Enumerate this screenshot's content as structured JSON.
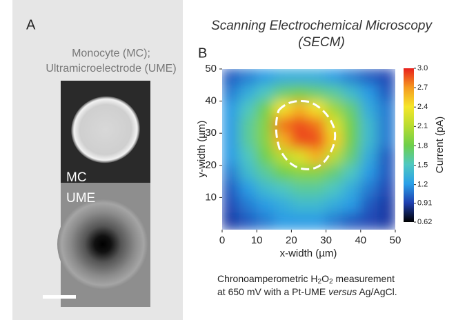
{
  "panel_a": {
    "label": "A",
    "title_lines": [
      "Monocyte (MC);",
      "Ultramicroelectrode (UME)"
    ],
    "image_labels": [
      "MC",
      "UME"
    ]
  },
  "chart_data": {
    "type": "heatmap",
    "panel_label": "B",
    "title_lines": [
      "Scanning Electrochemical Microscopy",
      "(SECM)"
    ],
    "x_label": "x-width (µm)",
    "y_label": "y-width (µm)",
    "colorbar_label": "Current (pA)",
    "xlim": [
      0,
      50
    ],
    "ylim": [
      0,
      50
    ],
    "xticks": [
      0,
      10,
      20,
      30,
      40,
      50
    ],
    "yticks": [
      10,
      20,
      30,
      40,
      50
    ],
    "clim": [
      0.62,
      3.0
    ],
    "cticks": [
      {
        "value": 3.0,
        "label": "3.0"
      },
      2.7,
      2.4,
      2.1,
      1.8,
      1.5,
      1.2,
      0.91,
      0.62
    ],
    "colorscale": [
      "#000000",
      "#1f3fb0",
      "#2aa0e8",
      "#4fc8c0",
      "#6ecf4a",
      "#b8dc30",
      "#f5e62a",
      "#f59a20",
      "#e8201c"
    ],
    "values": [
      [
        1.0,
        1.1,
        1.2,
        1.3,
        1.3,
        1.3,
        1.2,
        1.1,
        1.0,
        0.95
      ],
      [
        1.1,
        1.3,
        1.5,
        1.7,
        1.8,
        1.7,
        1.6,
        1.4,
        1.2,
        1.0
      ],
      [
        1.2,
        1.5,
        1.8,
        2.4,
        2.6,
        2.4,
        2.0,
        1.7,
        1.3,
        1.1
      ],
      [
        1.2,
        1.6,
        1.9,
        2.8,
        2.9,
        2.8,
        2.3,
        1.8,
        1.4,
        1.1
      ],
      [
        1.2,
        1.6,
        1.9,
        2.6,
        2.9,
        2.9,
        2.5,
        1.8,
        1.4,
        1.1
      ],
      [
        1.2,
        1.5,
        1.8,
        2.1,
        2.3,
        2.6,
        2.1,
        1.7,
        1.3,
        1.0
      ],
      [
        1.1,
        1.4,
        1.6,
        1.8,
        1.9,
        1.9,
        1.7,
        1.5,
        1.2,
        1.0
      ],
      [
        1.0,
        1.2,
        1.4,
        1.5,
        1.6,
        1.6,
        1.5,
        1.3,
        1.1,
        0.95
      ],
      [
        0.95,
        1.1,
        1.2,
        1.3,
        1.4,
        1.4,
        1.3,
        1.2,
        1.0,
        0.9
      ],
      [
        0.9,
        1.0,
        1.1,
        1.2,
        1.2,
        1.2,
        1.1,
        1.0,
        0.95,
        0.9
      ]
    ]
  },
  "caption": {
    "line1": [
      "Chronoamperometric H",
      "2",
      "O",
      "2",
      " measurement"
    ],
    "line2": [
      "at 650 mV with a Pt-UME ",
      "versus",
      " Ag/AgCl."
    ]
  }
}
